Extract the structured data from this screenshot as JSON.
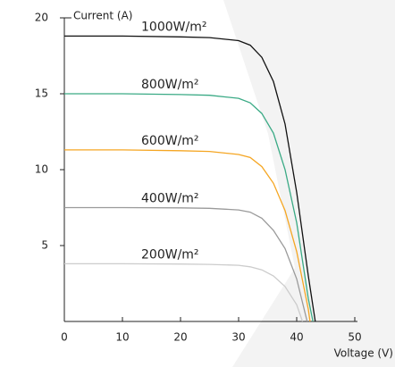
{
  "chart_data": {
    "type": "line",
    "y_label": "Current (A)",
    "x_label": "Voltage  (V)",
    "xlim": [
      0,
      50
    ],
    "ylim": [
      0,
      20
    ],
    "xticks": [
      0,
      10,
      20,
      30,
      40,
      50
    ],
    "yticks": [
      5,
      10,
      15,
      20
    ],
    "series": [
      {
        "name": "1000W/m²",
        "color": "#111111",
        "x": [
          0,
          10,
          20,
          25,
          30,
          32,
          34,
          36,
          38,
          40,
          42,
          43.2
        ],
        "values": [
          18.8,
          18.8,
          18.75,
          18.7,
          18.5,
          18.2,
          17.4,
          15.8,
          13,
          8.5,
          3,
          0
        ]
      },
      {
        "name": "800W/m²",
        "color": "#3aaa85",
        "x": [
          0,
          10,
          20,
          25,
          30,
          32,
          34,
          36,
          38,
          40,
          42,
          42.8
        ],
        "values": [
          15,
          15,
          14.95,
          14.9,
          14.7,
          14.4,
          13.7,
          12.4,
          10,
          6.5,
          1.5,
          0
        ]
      },
      {
        "name": "600W/m²",
        "color": "#f5a623",
        "x": [
          0,
          10,
          20,
          25,
          30,
          32,
          34,
          36,
          38,
          40,
          42,
          42.3
        ],
        "values": [
          11.3,
          11.3,
          11.25,
          11.2,
          11,
          10.8,
          10.2,
          9.1,
          7.3,
          4.6,
          0.8,
          0
        ]
      },
      {
        "name": "400W/m²",
        "color": "#9a9a9a",
        "x": [
          0,
          10,
          20,
          25,
          30,
          32,
          34,
          36,
          38,
          40,
          41.8
        ],
        "values": [
          7.5,
          7.5,
          7.48,
          7.45,
          7.35,
          7.2,
          6.8,
          6,
          4.8,
          2.8,
          0
        ]
      },
      {
        "name": "200W/m²",
        "color": "#cccccc",
        "x": [
          0,
          10,
          20,
          25,
          30,
          32,
          34,
          36,
          38,
          40,
          41
        ],
        "values": [
          3.8,
          3.8,
          3.78,
          3.76,
          3.7,
          3.6,
          3.4,
          3,
          2.3,
          1.1,
          0
        ]
      }
    ]
  }
}
